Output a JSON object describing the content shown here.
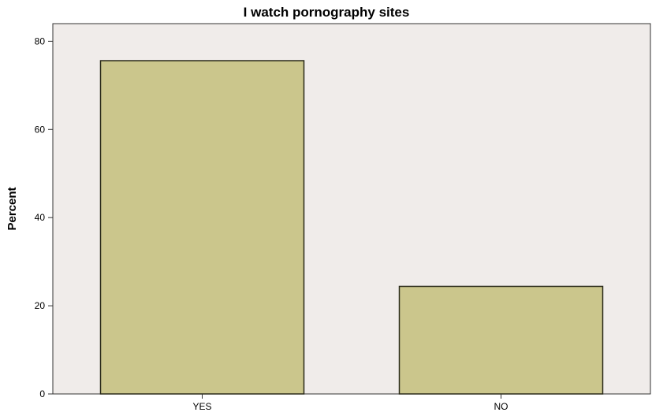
{
  "chart_data": {
    "type": "bar",
    "title": "I watch pornography sites",
    "xlabel": "",
    "ylabel": "Percent",
    "categories": [
      "YES",
      "NO"
    ],
    "values": [
      75.6,
      24.4
    ],
    "ylim": [
      0,
      84
    ],
    "yticks": [
      0,
      20,
      40,
      60,
      80
    ],
    "ytick_labels": [
      "0",
      "20",
      "40",
      "60",
      "80"
    ],
    "grid": false,
    "legend": "none",
    "colors": {
      "bar_fill": "#CBC68C",
      "bar_stroke": "#2a2a1a",
      "plot_background": "#F0ECEA",
      "axis": "#333333"
    }
  }
}
